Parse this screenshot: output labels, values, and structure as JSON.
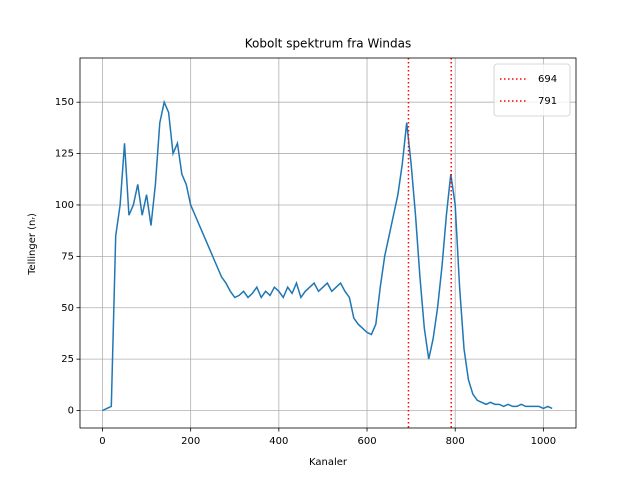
{
  "chart_data": {
    "type": "line",
    "title": "Kobolt spektrum fra Windas",
    "xlabel": "Kanaler",
    "ylabel": "Tellinger (nᵣ)",
    "x": [
      0,
      10,
      20,
      30,
      40,
      50,
      60,
      70,
      80,
      90,
      100,
      110,
      120,
      130,
      140,
      150,
      160,
      170,
      180,
      190,
      200,
      210,
      220,
      230,
      240,
      250,
      260,
      270,
      280,
      290,
      300,
      310,
      320,
      330,
      340,
      350,
      360,
      370,
      380,
      390,
      400,
      410,
      420,
      430,
      440,
      450,
      460,
      470,
      480,
      490,
      500,
      510,
      520,
      530,
      540,
      550,
      560,
      570,
      580,
      590,
      600,
      610,
      620,
      630,
      640,
      650,
      660,
      670,
      680,
      690,
      700,
      710,
      720,
      730,
      740,
      750,
      760,
      770,
      780,
      790,
      800,
      810,
      820,
      830,
      840,
      850,
      860,
      870,
      880,
      890,
      900,
      910,
      920,
      930,
      940,
      950,
      960,
      970,
      980,
      990,
      1000,
      1010,
      1020
    ],
    "series": [
      {
        "name": "Tellinger",
        "color": "#1f77b4",
        "values": [
          0,
          1,
          2,
          85,
          100,
          130,
          95,
          100,
          110,
          95,
          105,
          90,
          110,
          140,
          150,
          145,
          125,
          130,
          115,
          110,
          100,
          95,
          90,
          85,
          80,
          75,
          70,
          65,
          62,
          58,
          55,
          56,
          58,
          55,
          57,
          60,
          55,
          58,
          56,
          60,
          58,
          55,
          60,
          57,
          62,
          55,
          58,
          60,
          62,
          58,
          60,
          62,
          58,
          60,
          62,
          58,
          55,
          45,
          42,
          40,
          38,
          37,
          42,
          60,
          75,
          85,
          95,
          105,
          120,
          140,
          120,
          95,
          65,
          40,
          25,
          35,
          50,
          70,
          95,
          115,
          100,
          60,
          30,
          15,
          8,
          5,
          4,
          3,
          4,
          3,
          3,
          2,
          3,
          2,
          2,
          3,
          2,
          2,
          2,
          2,
          1,
          2,
          1
        ]
      }
    ],
    "vlines": [
      {
        "name": "694",
        "value": 694,
        "color": "#ff0000"
      },
      {
        "name": "791",
        "value": 791,
        "color": "#ff0000"
      }
    ],
    "xlim": [
      -51,
      1074
    ],
    "ylim": [
      -8.5,
      171.5
    ],
    "xticks": [
      0,
      200,
      400,
      600,
      800,
      1000
    ],
    "yticks": [
      0,
      25,
      50,
      75,
      100,
      125,
      150
    ],
    "grid": true,
    "legend": "upper right"
  }
}
